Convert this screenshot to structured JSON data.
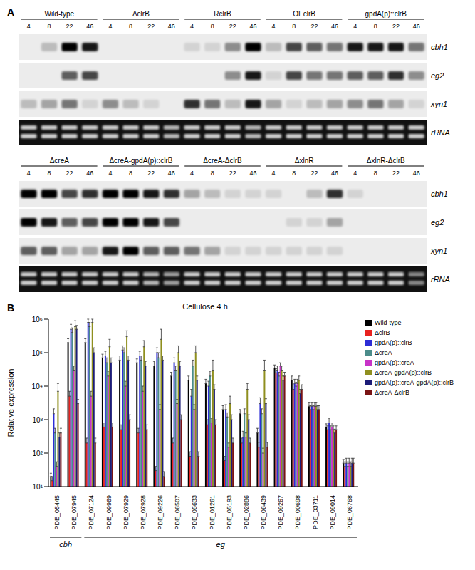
{
  "panel_A": {
    "label": "A",
    "timepoints": [
      4,
      8,
      22,
      46
    ],
    "blots": [
      {
        "strains": [
          "Wild-type",
          "ΔclrB",
          "RclrB",
          "OEclrB",
          "gpdA(p)::clrB"
        ],
        "rows": [
          {
            "gene": "cbh1",
            "intensity": [
              [
                0,
                0.2,
                1,
                0.9
              ],
              [
                0,
                0,
                0,
                0
              ],
              [
                0.1,
                0.1,
                0.4,
                1
              ],
              [
                0.2,
                0.7,
                0.6,
                0.5
              ],
              [
                0.9,
                0.9,
                0.9,
                0.5
              ]
            ]
          },
          {
            "gene": "eg2",
            "intensity": [
              [
                0,
                0,
                0.6,
                0.7
              ],
              [
                0,
                0,
                0,
                0
              ],
              [
                0,
                0,
                0.4,
                0.9
              ],
              [
                0.1,
                0.7,
                0.5,
                0.5
              ],
              [
                0.6,
                0.6,
                0.8,
                0.4
              ]
            ]
          },
          {
            "gene": "xyn1",
            "intensity": [
              [
                0.2,
                0.3,
                0.5,
                0.1
              ],
              [
                0.4,
                0.2,
                0.1,
                0
              ],
              [
                0.8,
                0.5,
                0.2,
                0.9
              ],
              [
                0.3,
                0.1,
                0.2,
                0.3
              ],
              [
                0.4,
                0.5,
                0.3,
                0.1
              ]
            ]
          },
          {
            "gene": "rRNA",
            "intensity": [
              [
                0.8,
                0.8,
                0.8,
                0.8
              ],
              [
                0.8,
                0.8,
                0.8,
                0.7
              ],
              [
                0.8,
                0.8,
                0.8,
                0.7
              ],
              [
                0.8,
                0.8,
                0.8,
                0.8
              ],
              [
                0.8,
                0.8,
                0.8,
                0.8
              ]
            ]
          }
        ]
      },
      {
        "strains": [
          "ΔcreA",
          "ΔcreA-gpdA(p)::clrB",
          "ΔcreA-ΔclrB",
          "ΔxlnR",
          "ΔxlnR-ΔclrB"
        ],
        "rows": [
          {
            "gene": "cbh1",
            "intensity": [
              [
                1,
                1,
                0.7,
                0.8
              ],
              [
                1,
                1,
                0.9,
                0.8
              ],
              [
                0.3,
                0.2,
                0.1,
                0.1
              ],
              [
                0.1,
                0,
                0.2,
                0.8
              ],
              [
                0.1,
                0,
                0,
                0
              ]
            ]
          },
          {
            "gene": "eg2",
            "intensity": [
              [
                1,
                0.9,
                0.6,
                0.7
              ],
              [
                1,
                1,
                0.9,
                0.7
              ],
              [
                0,
                0,
                0,
                0
              ],
              [
                0,
                0.1,
                0.1,
                0.3
              ],
              [
                0,
                0,
                0,
                0
              ]
            ]
          },
          {
            "gene": "xyn1",
            "intensity": [
              [
                0.6,
                0.6,
                0.3,
                0.3
              ],
              [
                0.9,
                1,
                0.6,
                0.6
              ],
              [
                0.5,
                0.3,
                0.1,
                0.1
              ],
              [
                0.1,
                0.1,
                0.1,
                0.1
              ],
              [
                0,
                0,
                0,
                0
              ]
            ]
          },
          {
            "gene": "rRNA",
            "intensity": [
              [
                0.8,
                0.8,
                0.8,
                0.8
              ],
              [
                0.8,
                0.8,
                0.7,
                0.6
              ],
              [
                0.8,
                0.8,
                0.8,
                0.8
              ],
              [
                0.8,
                0.8,
                0.8,
                0.8
              ],
              [
                0.8,
                0.8,
                0.8,
                0.5
              ]
            ]
          }
        ]
      }
    ]
  },
  "chart_data": {
    "type": "bar",
    "label": "B",
    "annotation": "Cellulose 4 h",
    "ylabel": "Relative expression",
    "log": "y",
    "legend": "right",
    "ylim": [
      10,
      1000000
    ],
    "yticks": [
      {
        "value": 10,
        "label": "10¹"
      },
      {
        "value": 100,
        "label": "10²"
      },
      {
        "value": 1000,
        "label": "10³"
      },
      {
        "value": 10000,
        "label": "10⁴"
      },
      {
        "value": 100000,
        "label": "10⁵"
      },
      {
        "value": 1000000,
        "label": "10⁶"
      }
    ],
    "categories": [
      "PDE_05445",
      "PDE_07945",
      "PDE_07124",
      "PDE_09969",
      "PDE_07929",
      "PDE_07928",
      "PDE_09226",
      "PDE_06507",
      "PDE_05633",
      "PDE_01261",
      "PDE_05193",
      "PDE_02886",
      "PDE_06439",
      "PDE_09267",
      "PDE_00698",
      "PDE_03711",
      "PDE_09014",
      "PDE_06768"
    ],
    "gene_groups": [
      {
        "label": "cbh",
        "from": "PDE_05445",
        "to": "PDE_07945"
      },
      {
        "label": "eg",
        "from": "PDE_07124",
        "to": "PDE_06768"
      }
    ],
    "series": [
      {
        "name": "Wild-type",
        "color": "#000000",
        "values": [
          20,
          200000,
          200000,
          70000,
          60000,
          50000,
          40000,
          20000,
          15000,
          12000,
          2000,
          1500,
          400,
          35000,
          15000,
          2500,
          600,
          50
        ],
        "errors": [
          5,
          60000,
          60000,
          20000,
          20000,
          15000,
          15000,
          6000,
          5000,
          4000,
          600,
          500,
          150,
          8000,
          5000,
          800,
          150,
          15
        ]
      },
      {
        "name": "ΔclrB",
        "color": "#e8221f",
        "values": [
          15,
          5000,
          200,
          600,
          500,
          400,
          30,
          200,
          80,
          700,
          60,
          200,
          150,
          25000,
          8000,
          2000,
          500,
          40
        ],
        "errors": [
          5,
          2000,
          80,
          200,
          200,
          150,
          10,
          80,
          30,
          300,
          20,
          80,
          60,
          8000,
          3000,
          600,
          150,
          15
        ]
      },
      {
        "name": "gpdA(p)::clrB",
        "color": "#2d2dd6",
        "values": [
          1500,
          500000,
          800000,
          80000,
          120000,
          80000,
          100000,
          50000,
          5000,
          10000,
          2000,
          300,
          3000,
          30000,
          12000,
          2500,
          800,
          50
        ],
        "errors": [
          600,
          200000,
          200000,
          30000,
          40000,
          30000,
          40000,
          20000,
          3000,
          4000,
          800,
          150,
          1500,
          10000,
          4000,
          800,
          300,
          20
        ]
      },
      {
        "name": "ΔcreA",
        "color": "#4b8c8a",
        "values": [
          400,
          400000,
          600000,
          50000,
          100000,
          60000,
          70000,
          30000,
          40000,
          20000,
          1200,
          1500,
          1500,
          20000,
          10000,
          2000,
          500,
          40
        ],
        "errors": [
          150,
          150000,
          200000,
          20000,
          40000,
          20000,
          30000,
          10000,
          20000,
          8000,
          400,
          600,
          600,
          6000,
          3000,
          600,
          150,
          15
        ]
      },
      {
        "name": "gpdA(p)::creA",
        "color": "#c832c8",
        "values": [
          40,
          30000,
          5000,
          20000,
          10000,
          7000,
          2000,
          3000,
          2000,
          800,
          150,
          300,
          100,
          40000,
          12000,
          2500,
          600,
          50
        ],
        "errors": [
          15,
          10000,
          2000,
          8000,
          4000,
          3000,
          800,
          1000,
          800,
          300,
          50,
          100,
          40,
          10000,
          4000,
          800,
          200,
          20
        ]
      },
      {
        "name": "ΔcreA-gpdA(p)::clrB",
        "color": "#8f8f1f",
        "values": [
          7000,
          600000,
          800000,
          150000,
          300000,
          150000,
          250000,
          100000,
          100000,
          30000,
          3000,
          8000,
          30000,
          30000,
          15000,
          2500,
          500,
          40
        ],
        "errors": [
          5000,
          300000,
          200000,
          100000,
          150000,
          80000,
          250000,
          60000,
          60000,
          30000,
          2000,
          4000,
          30000,
          10000,
          5000,
          800,
          150,
          15
        ]
      },
      {
        "name": "gpdA(p)::creA-gpdA(p)::clrB",
        "color": "#1c1c78",
        "values": [
          300,
          500000,
          100000,
          50000,
          60000,
          40000,
          60000,
          40000,
          15000,
          8000,
          1000,
          1000,
          3000,
          15000,
          6000,
          2000,
          400,
          50
        ],
        "errors": [
          100,
          150000,
          40000,
          20000,
          20000,
          15000,
          20000,
          15000,
          5000,
          3000,
          400,
          400,
          1200,
          5000,
          2000,
          600,
          120,
          20
        ]
      },
      {
        "name": "ΔcreA-ΔclrB",
        "color": "#7a1414",
        "values": [
          400,
          3000,
          200,
          600,
          1000,
          500,
          20,
          1000,
          80,
          700,
          200,
          200,
          150,
          20000,
          8000,
          2000,
          500,
          50
        ],
        "errors": [
          150,
          1000,
          80,
          200,
          400,
          200,
          8,
          400,
          30,
          300,
          80,
          80,
          60,
          6000,
          3000,
          600,
          150,
          20
        ]
      }
    ]
  }
}
